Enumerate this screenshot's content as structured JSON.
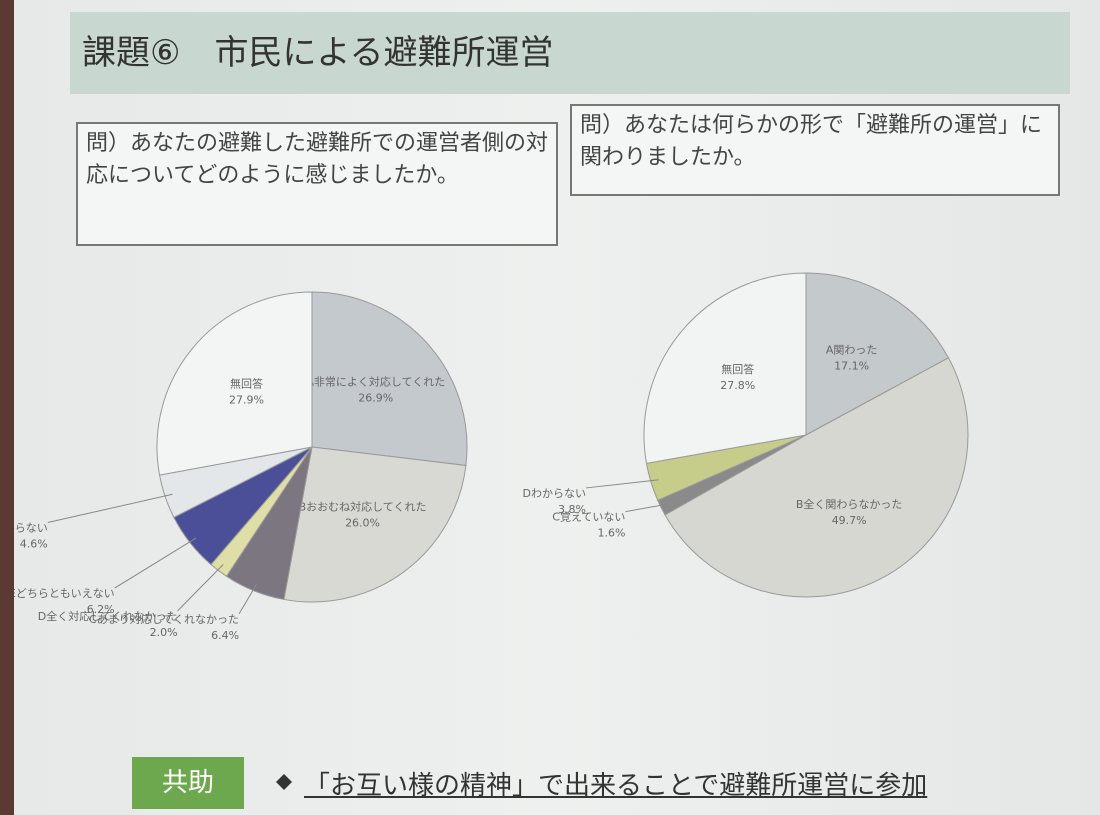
{
  "slide": {
    "title": "課題⑥　市民による避難所運営",
    "questions": [
      "問）あなたの避難した避難所での運営者側の対応についてどのように感じましたか。",
      "問）あなたは何らかの形で「避難所の運営」に関わりましたか。"
    ],
    "footer_tag": "共助",
    "footer_text": "「お互い様の精神」で出来ることで避難所運営に参加"
  },
  "chart_data": [
    {
      "type": "pie",
      "categories": [
        "A非常によく対応してくれた",
        "Bおおむね対応してくれた",
        "Cあまり対応してくれなかった",
        "D全く対応してくれなかった",
        "Eどちらともいえない",
        "Fわからない",
        "無回答"
      ],
      "values": [
        26.9,
        26.0,
        6.4,
        2.0,
        6.2,
        4.6,
        27.9
      ],
      "value_labels": [
        "26.9%",
        "26.0%",
        "6.4%",
        "2.0%",
        "6.2%",
        "4.6%",
        "27.9%"
      ],
      "colors": [
        "#c4c9cd",
        "#d9d9d4",
        "#7b7680",
        "#dedea6",
        "#4a4f98",
        "#e3e7e9",
        "#f3f5f5"
      ]
    },
    {
      "type": "pie",
      "categories": [
        "A関わった",
        "B全く関わらなかった",
        "C覚えていない",
        "Dわからない",
        "無回答"
      ],
      "values": [
        17.1,
        49.7,
        1.6,
        3.8,
        27.8
      ],
      "value_labels": [
        "17.1%",
        "49.7%",
        "1.6%",
        "3.8%",
        "27.8%"
      ],
      "colors": [
        "#c4c9cc",
        "#d7d7d1",
        "#8a8a8a",
        "#c6cd8a",
        "#f2f4f4"
      ]
    }
  ]
}
